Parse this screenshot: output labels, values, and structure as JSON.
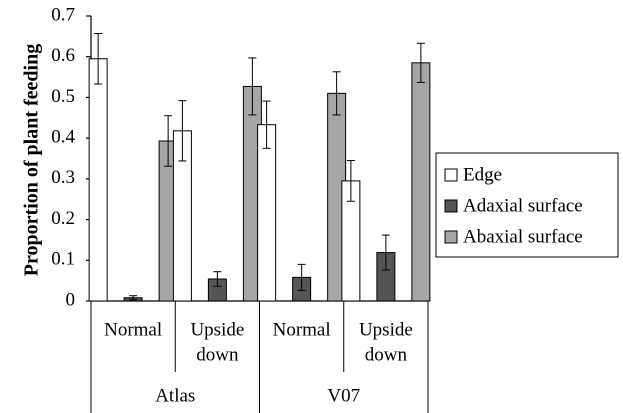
{
  "chart_data": {
    "type": "bar",
    "title": "",
    "xlabel": "",
    "ylabel": "Proportion of plant feeding",
    "ylim": [
      0,
      0.7
    ],
    "yticks": [
      "0",
      "0.1",
      "0.2",
      "0.3",
      "0.4",
      "0.5",
      "0.6",
      "0.7"
    ],
    "groups": [
      {
        "name": "Atlas",
        "categories": [
          {
            "label": [
              "Normal"
            ]
          },
          {
            "label": [
              "Upside",
              "down"
            ]
          }
        ]
      },
      {
        "name": "V07",
        "categories": [
          {
            "label": [
              "Normal"
            ]
          },
          {
            "label": [
              "Upside",
              "down"
            ]
          }
        ]
      }
    ],
    "series": [
      {
        "name": "Edge",
        "color": "#ffffff",
        "values": [
          0.595,
          0.418,
          0.433,
          0.295
        ],
        "errors": [
          0.062,
          0.074,
          0.058,
          0.05
        ]
      },
      {
        "name": "Adaxial surface",
        "color": "#555555",
        "values": [
          0.008,
          0.054,
          0.058,
          0.119
        ],
        "errors": [
          0.005,
          0.018,
          0.032,
          0.043
        ]
      },
      {
        "name": "Abaxial surface",
        "color": "#a6a6a6",
        "values": [
          0.393,
          0.527,
          0.51,
          0.585
        ],
        "errors": [
          0.062,
          0.07,
          0.053,
          0.048
        ]
      }
    ],
    "grid": false,
    "legend_position": "right"
  }
}
